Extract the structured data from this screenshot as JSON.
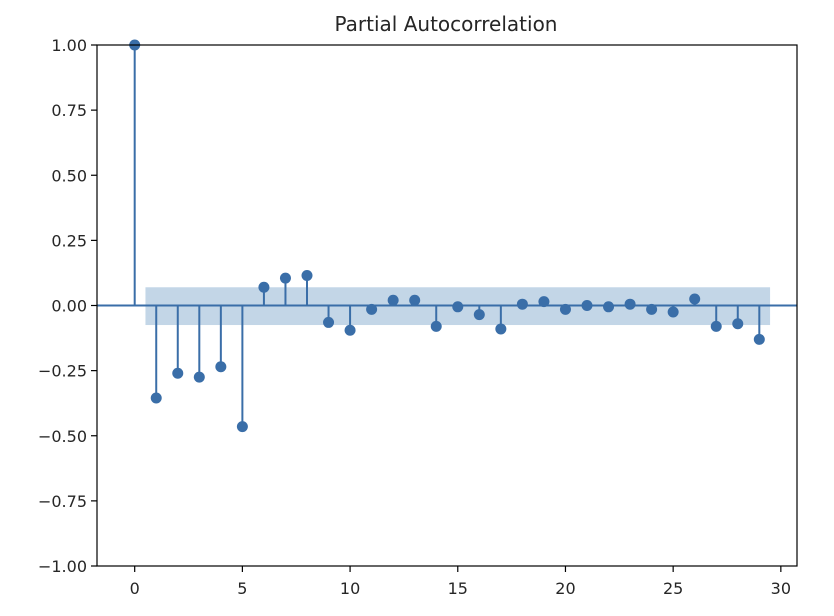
{
  "colors": {
    "stem": "#3a6ea8",
    "marker": "#3a6ea8",
    "zero_line": "#3a6ea8",
    "confidence_band": "#b8cfe3",
    "axis": "#000000",
    "text": "#262626",
    "background": "#ffffff"
  },
  "chart_data": {
    "type": "stem",
    "title": "Partial Autocorrelation",
    "xlabel": "",
    "ylabel": "",
    "xlim": [
      -1.75,
      30.75
    ],
    "ylim": [
      -1.0,
      1.0
    ],
    "grid": false,
    "x_ticks": [
      0,
      5,
      10,
      15,
      20,
      25,
      30
    ],
    "x_tick_labels": [
      "0",
      "5",
      "10",
      "15",
      "20",
      "25",
      "30"
    ],
    "y_ticks": [
      1.0,
      0.75,
      0.5,
      0.25,
      0.0,
      -0.25,
      -0.5,
      -0.75,
      -1.0
    ],
    "y_tick_labels": [
      "1.00",
      "0.75",
      "0.50",
      "0.25",
      "0.00",
      "−0.25",
      "−0.50",
      "−0.75",
      "−1.00"
    ],
    "confidence_interval": {
      "x_start": 0.5,
      "x_end": 29.5,
      "lower": -0.075,
      "upper": 0.07
    },
    "lags": [
      0,
      1,
      2,
      3,
      4,
      5,
      6,
      7,
      8,
      9,
      10,
      11,
      12,
      13,
      14,
      15,
      16,
      17,
      18,
      19,
      20,
      21,
      22,
      23,
      24,
      25,
      26,
      27,
      28,
      29
    ],
    "values": [
      1.0,
      -0.355,
      -0.26,
      -0.275,
      -0.235,
      -0.465,
      0.07,
      0.105,
      0.115,
      -0.065,
      -0.095,
      -0.015,
      0.02,
      0.02,
      -0.08,
      -0.005,
      -0.035,
      -0.09,
      0.005,
      0.015,
      -0.015,
      0.0,
      -0.005,
      0.005,
      -0.015,
      -0.025,
      0.025,
      -0.08,
      -0.07,
      -0.13
    ]
  }
}
